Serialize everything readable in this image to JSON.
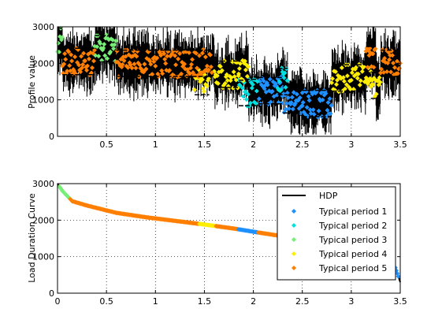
{
  "chart_data": [
    {
      "type": "line",
      "ylabel": "Profile value",
      "xlim": [
        0,
        3.5
      ],
      "ylim": [
        0,
        3000
      ],
      "xticks": [
        "0.5",
        "1",
        "1.5",
        "2",
        "2.5",
        "3",
        "3.5"
      ],
      "yticks": [
        "0",
        "1000",
        "2000",
        "3000"
      ],
      "grid": true,
      "series": [
        {
          "name": "HDP",
          "color": "#000000",
          "note": "raw profile, shown as dense black noise"
        },
        {
          "name": "Typical period 1",
          "color": "#1e90ff",
          "segments": [
            [
              2.05,
              2.3,
              1250
            ],
            [
              2.3,
              2.5,
              1000
            ],
            [
              2.5,
              2.8,
              900
            ]
          ]
        },
        {
          "name": "Typical period 2",
          "color": "#00e0e0",
          "segments": [
            [
              1.85,
              2.05,
              1200
            ],
            [
              2.25,
              2.35,
              1500
            ]
          ]
        },
        {
          "name": "Typical period 3",
          "color": "#77ee77",
          "segments": [
            [
              0.38,
              0.6,
              2400
            ],
            [
              0.0,
              0.05,
              2600
            ]
          ]
        },
        {
          "name": "Typical period 4",
          "color": "#ffee00",
          "segments": [
            [
              1.4,
              1.55,
              1500
            ],
            [
              1.6,
              1.85,
              1700
            ],
            [
              1.85,
              1.95,
              1900
            ],
            [
              2.8,
              3.2,
              1600
            ],
            [
              3.2,
              3.3,
              1400
            ]
          ]
        },
        {
          "name": "Typical period 5",
          "color": "#ff7f00",
          "segments": [
            [
              0.05,
              0.38,
              2050
            ],
            [
              0.6,
              1.58,
              2000
            ],
            [
              3.3,
              3.5,
              2000
            ],
            [
              3.15,
              3.25,
              2100
            ]
          ]
        }
      ]
    },
    {
      "type": "line",
      "ylabel": "Load Duration Curve",
      "xlim": [
        0,
        3.5
      ],
      "ylim": [
        0,
        3000
      ],
      "xticks": [
        "0",
        "0.5",
        "1",
        "1.5",
        "2",
        "2.5",
        "3",
        "3.5"
      ],
      "yticks": [
        "0",
        "1000",
        "2000",
        "3000"
      ],
      "grid": true,
      "legend_position": "upper-right",
      "series": [
        {
          "name": "HDP",
          "color": "#000000",
          "x": [
            0,
            0.05,
            0.15,
            0.3,
            0.45,
            0.6,
            0.9,
            1.2,
            1.5,
            1.8,
            2.1,
            2.4,
            2.7,
            3.0,
            3.3,
            3.45,
            3.5
          ],
          "y": [
            3000,
            2800,
            2520,
            2400,
            2300,
            2200,
            2080,
            1980,
            1880,
            1770,
            1640,
            1520,
            1380,
            1200,
            900,
            700,
            300
          ]
        },
        {
          "name": "Typical period 1",
          "color": "#1e90ff"
        },
        {
          "name": "Typical period 2",
          "color": "#00e0e0"
        },
        {
          "name": "Typical period 3",
          "color": "#77ee77"
        },
        {
          "name": "Typical period 4",
          "color": "#ffee00"
        },
        {
          "name": "Typical period 5",
          "color": "#ff7f00"
        }
      ]
    }
  ]
}
